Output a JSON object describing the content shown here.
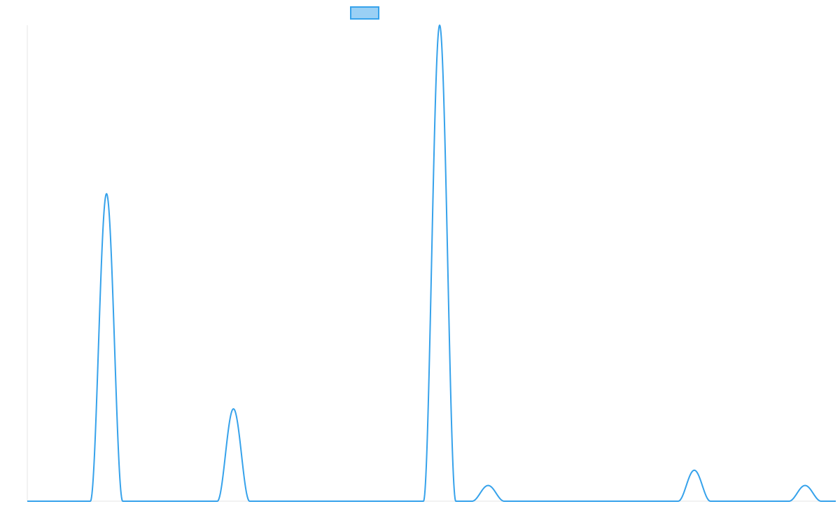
{
  "chart_data": {
    "type": "line",
    "title": "",
    "xlabel": "",
    "ylabel": "",
    "legend": "top-center",
    "grid": false,
    "xlim": [
      0,
      100
    ],
    "ylim": [
      0,
      1
    ],
    "series": [
      {
        "peaks": [
          {
            "center": 9.8,
            "height": 0.646,
            "halfwidth": 2.0
          },
          {
            "center": 25.5,
            "height": 0.194,
            "halfwidth": 2.0
          },
          {
            "center": 51.0,
            "height": 1.0,
            "halfwidth": 2.0
          },
          {
            "center": 57.0,
            "height": 0.033,
            "halfwidth": 2.0
          },
          {
            "center": 82.5,
            "height": 0.065,
            "halfwidth": 2.0
          },
          {
            "center": 96.2,
            "height": 0.033,
            "halfwidth": 2.0
          }
        ]
      }
    ]
  },
  "colors": {
    "line": "#36a2eb",
    "legend_fill": "#9ad0f5",
    "axis": "#e5e5e5"
  }
}
